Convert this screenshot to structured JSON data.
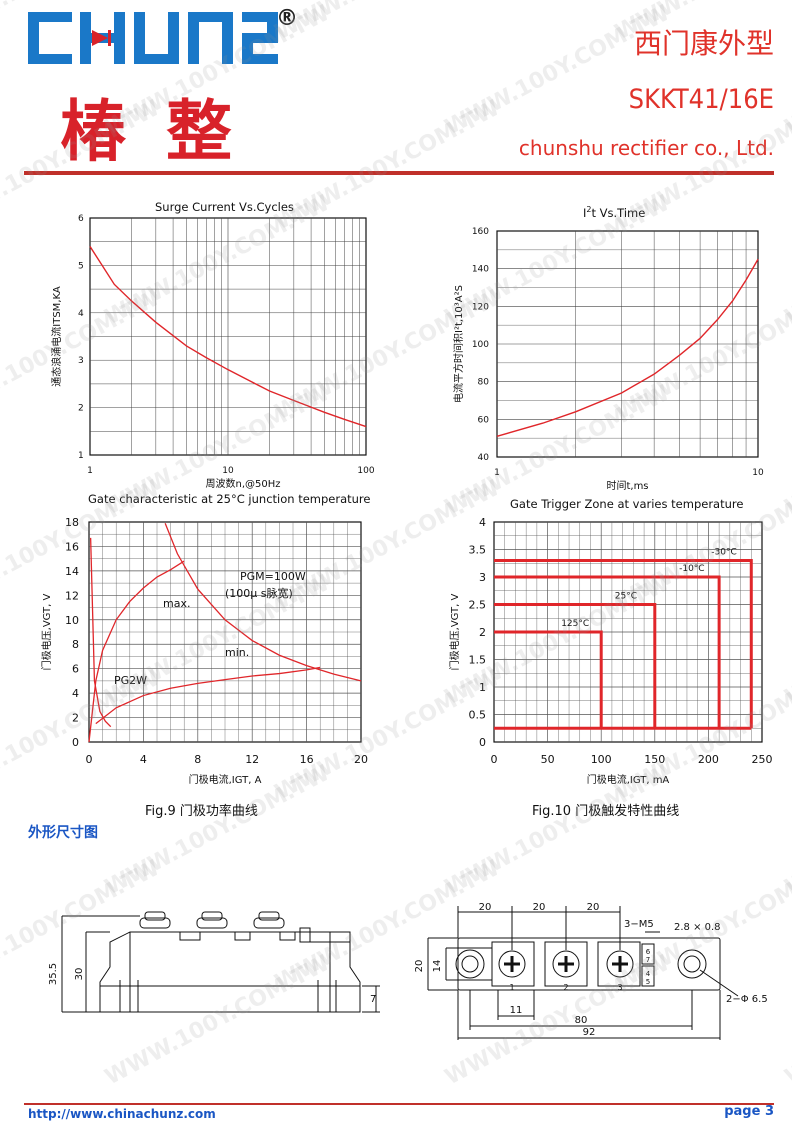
{
  "header": {
    "logo_text": "CHUNZ",
    "registered_mark": "®",
    "brand_cn": "椿整",
    "line1": "西门康外型",
    "model": "SKKT41/16E",
    "company": "chunshu rectifier co., Ltd."
  },
  "watermark": "WWW.100Y.COM.TW",
  "charts": {
    "surge": {
      "title": "Surge Current Vs.Cycles",
      "ylabel": "通态浪涌电流ITSM,KA",
      "xlabel": "周波数n,@50Hz",
      "xticks": [
        "1",
        "10",
        "100"
      ],
      "yticks": [
        "1",
        "2",
        "3",
        "4",
        "5",
        "6"
      ]
    },
    "i2t": {
      "title": "I²t Vs.Time",
      "ylabel": "电流平方时间积I²t,10³A²S",
      "xlabel": "时间t,ms",
      "xticks": [
        "1",
        "10"
      ],
      "yticks": [
        "40",
        "60",
        "80",
        "100",
        "120",
        "140",
        "160"
      ]
    },
    "gate": {
      "title": "Gate characteristic at 25°C junction temperature",
      "ylabel": "门极电压,VGT, V",
      "xlabel": "门极电流,IGT, A",
      "xticks": [
        "0",
        "4",
        "8",
        "12",
        "16",
        "20"
      ],
      "yticks": [
        "0",
        "2",
        "4",
        "6",
        "8",
        "10",
        "12",
        "14",
        "16",
        "18"
      ],
      "ann_pgm": "PGM=100W",
      "ann_pulse": "(100μ s脉宽)",
      "ann_max": "max.",
      "ann_min": "min.",
      "ann_pg": "PG2W"
    },
    "trigger": {
      "title": "Gate Trigger Zone at varies temperature",
      "ylabel": "门极电压,VGT, V",
      "xlabel": "门极电流,IGT, mA",
      "xticks": [
        "0",
        "50",
        "100",
        "150",
        "200",
        "250"
      ],
      "yticks": [
        "0",
        "0.5",
        "1",
        "1.5",
        "2",
        "2.5",
        "3",
        "3.5",
        "4"
      ],
      "zones": [
        "-30°C",
        "-10°C",
        "25°C",
        "125°C"
      ]
    }
  },
  "chart_data": [
    {
      "type": "line",
      "title": "Surge Current Vs.Cycles",
      "xlabel": "周波数n,@50Hz",
      "ylabel": "通态浪涌电流ITSM,KA",
      "xscale": "log",
      "xlim": [
        1,
        100
      ],
      "ylim": [
        1,
        6
      ],
      "x": [
        1,
        1.5,
        2,
        3,
        5,
        7,
        10,
        20,
        30,
        50,
        70,
        100
      ],
      "values": [
        5.4,
        4.6,
        4.25,
        3.8,
        3.3,
        3.05,
        2.8,
        2.35,
        2.15,
        1.9,
        1.75,
        1.6
      ],
      "grid": true
    },
    {
      "type": "line",
      "title": "I²t Vs.Time",
      "xlabel": "时间t,ms",
      "ylabel": "电流平方时间积I²t,10³A²S",
      "xscale": "log",
      "xlim": [
        1,
        10
      ],
      "ylim": [
        40,
        160
      ],
      "x": [
        1,
        1.5,
        2,
        3,
        4,
        5,
        6,
        7,
        8,
        9,
        10
      ],
      "values": [
        51,
        58,
        64,
        74,
        84,
        94,
        103,
        113,
        123,
        134,
        145
      ],
      "grid": true
    },
    {
      "type": "line",
      "title": "Gate characteristic at 25°C junction temperature",
      "xlabel": "门极电流,IGT, A",
      "ylabel": "门极电压,VGT, V",
      "xlim": [
        0,
        20
      ],
      "ylim": [
        0,
        18
      ],
      "series": [
        {
          "name": "max.",
          "x": [
            0,
            0.5,
            1,
            2,
            3,
            4,
            5,
            6,
            7
          ],
          "values": [
            0,
            5,
            7.5,
            10,
            11.5,
            12.6,
            13.5,
            14.1,
            14.8
          ]
        },
        {
          "name": "min.",
          "x": [
            0.5,
            2,
            4,
            6,
            8,
            10,
            12,
            14,
            16,
            17
          ],
          "values": [
            1.5,
            2.8,
            3.8,
            4.4,
            4.8,
            5.1,
            5.4,
            5.6,
            5.9,
            6.1
          ]
        },
        {
          "name": "PGM=100W",
          "x": [
            5.6,
            6.5,
            8,
            10,
            12,
            14,
            16,
            18,
            20
          ],
          "values": [
            17.9,
            15.4,
            12.5,
            10,
            8.3,
            7.1,
            6.25,
            5.55,
            5.0
          ]
        },
        {
          "name": "PG2W",
          "x": [
            0.12,
            0.4,
            0.8,
            1.2,
            1.6
          ],
          "values": [
            16.7,
            5,
            2.5,
            1.7,
            1.25
          ]
        }
      ],
      "grid": true
    },
    {
      "type": "area",
      "title": "Gate Trigger Zone at varies temperature",
      "xlabel": "门极电流,IGT, mA",
      "ylabel": "门极电压,VGT, V",
      "xlim": [
        0,
        250
      ],
      "ylim": [
        0,
        4
      ],
      "series": [
        {
          "name": "-30°C",
          "igt": 240,
          "vgt": 3.3
        },
        {
          "name": "-10°C",
          "igt": 210,
          "vgt": 3.0
        },
        {
          "name": "25°C",
          "igt": 150,
          "vgt": 2.5
        },
        {
          "name": "125°C",
          "igt": 100,
          "vgt": 2.0
        }
      ],
      "floor_vgt": 0.25,
      "grid": true
    }
  ],
  "captions": {
    "fig9": "Fig.9 门极功率曲线",
    "fig10": "Fig.10 门极触发特性曲线"
  },
  "section_title": "外形尺寸图",
  "dimensions": {
    "side": {
      "h1": "35.5",
      "h2": "30",
      "h3": "7"
    },
    "top": {
      "pitch": [
        "20",
        "20",
        "20"
      ],
      "screw": "3−M5",
      "tab": "2.8 × 0.8",
      "w20": "20",
      "w14": "14",
      "w11": "11",
      "w80": "80",
      "w92": "92",
      "holes": "2−Φ 6.5",
      "terminals": [
        "1",
        "2",
        "3"
      ],
      "aux": [
        "6",
        "7",
        "4",
        "5"
      ]
    }
  },
  "footer": {
    "url": "http://www.chinachunz.com",
    "page": "page 3"
  }
}
